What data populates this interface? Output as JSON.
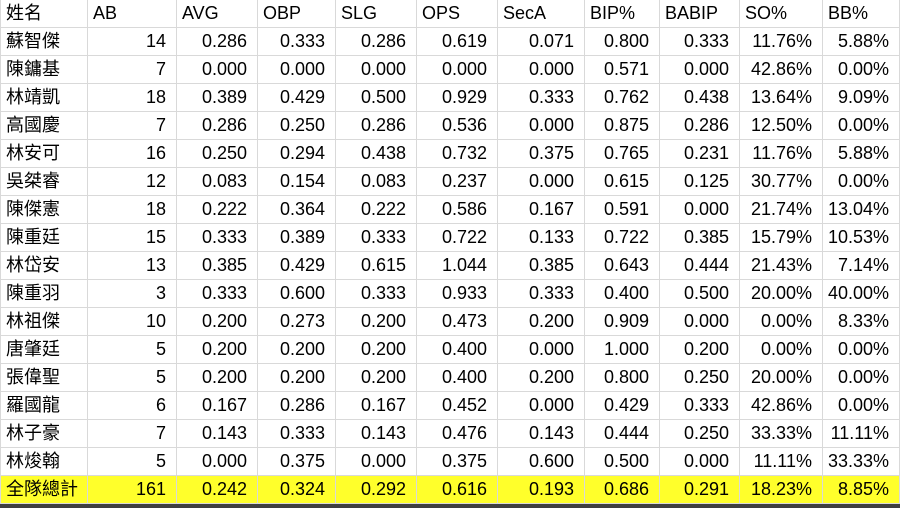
{
  "table": {
    "headers": [
      "姓名",
      "AB",
      "AVG",
      "OBP",
      "SLG",
      "OPS",
      "SecA",
      "BIP%",
      "BABIP",
      "SO%",
      "BB%"
    ],
    "rows": [
      {
        "name": "蘇智傑",
        "values": [
          "14",
          "0.286",
          "0.333",
          "0.286",
          "0.619",
          "0.071",
          "0.800",
          "0.333",
          "11.76%",
          "5.88%"
        ]
      },
      {
        "name": "陳鏞基",
        "values": [
          "7",
          "0.000",
          "0.000",
          "0.000",
          "0.000",
          "0.000",
          "0.571",
          "0.000",
          "42.86%",
          "0.00%"
        ]
      },
      {
        "name": "林靖凱",
        "values": [
          "18",
          "0.389",
          "0.429",
          "0.500",
          "0.929",
          "0.333",
          "0.762",
          "0.438",
          "13.64%",
          "9.09%"
        ]
      },
      {
        "name": "高國慶",
        "values": [
          "7",
          "0.286",
          "0.250",
          "0.286",
          "0.536",
          "0.000",
          "0.875",
          "0.286",
          "12.50%",
          "0.00%"
        ]
      },
      {
        "name": "林安可",
        "values": [
          "16",
          "0.250",
          "0.294",
          "0.438",
          "0.732",
          "0.375",
          "0.765",
          "0.231",
          "11.76%",
          "5.88%"
        ]
      },
      {
        "name": "吳桀睿",
        "values": [
          "12",
          "0.083",
          "0.154",
          "0.083",
          "0.237",
          "0.000",
          "0.615",
          "0.125",
          "30.77%",
          "0.00%"
        ]
      },
      {
        "name": "陳傑憲",
        "values": [
          "18",
          "0.222",
          "0.364",
          "0.222",
          "0.586",
          "0.167",
          "0.591",
          "0.000",
          "21.74%",
          "13.04%"
        ]
      },
      {
        "name": "陳重廷",
        "values": [
          "15",
          "0.333",
          "0.389",
          "0.333",
          "0.722",
          "0.133",
          "0.722",
          "0.385",
          "15.79%",
          "10.53%"
        ]
      },
      {
        "name": "林岱安",
        "values": [
          "13",
          "0.385",
          "0.429",
          "0.615",
          "1.044",
          "0.385",
          "0.643",
          "0.444",
          "21.43%",
          "7.14%"
        ]
      },
      {
        "name": "陳重羽",
        "values": [
          "3",
          "0.333",
          "0.600",
          "0.333",
          "0.933",
          "0.333",
          "0.400",
          "0.500",
          "20.00%",
          "40.00%"
        ]
      },
      {
        "name": "林祖傑",
        "values": [
          "10",
          "0.200",
          "0.273",
          "0.200",
          "0.473",
          "0.200",
          "0.909",
          "0.000",
          "0.00%",
          "8.33%"
        ]
      },
      {
        "name": "唐肇廷",
        "values": [
          "5",
          "0.200",
          "0.200",
          "0.200",
          "0.400",
          "0.000",
          "1.000",
          "0.200",
          "0.00%",
          "0.00%"
        ]
      },
      {
        "name": "張偉聖",
        "values": [
          "5",
          "0.200",
          "0.200",
          "0.200",
          "0.400",
          "0.200",
          "0.800",
          "0.250",
          "20.00%",
          "0.00%"
        ]
      },
      {
        "name": "羅國龍",
        "values": [
          "6",
          "0.167",
          "0.286",
          "0.167",
          "0.452",
          "0.000",
          "0.429",
          "0.333",
          "42.86%",
          "0.00%"
        ]
      },
      {
        "name": "林子豪",
        "values": [
          "7",
          "0.143",
          "0.333",
          "0.143",
          "0.476",
          "0.143",
          "0.444",
          "0.250",
          "33.33%",
          "11.11%"
        ]
      },
      {
        "name": "林焌翰",
        "values": [
          "5",
          "0.000",
          "0.375",
          "0.000",
          "0.375",
          "0.600",
          "0.500",
          "0.000",
          "11.11%",
          "33.33%"
        ]
      }
    ],
    "total_row": {
      "name": "全隊總計",
      "values": [
        "161",
        "0.242",
        "0.324",
        "0.292",
        "0.616",
        "0.193",
        "0.686",
        "0.291",
        "18.23%",
        "8.85%"
      ]
    }
  },
  "colors": {
    "total_highlight": "#ffff2b",
    "gridline": "#d9d9d9",
    "bottom_strip": "#3f3f3f",
    "text": "#000000",
    "background": "#ffffff"
  }
}
